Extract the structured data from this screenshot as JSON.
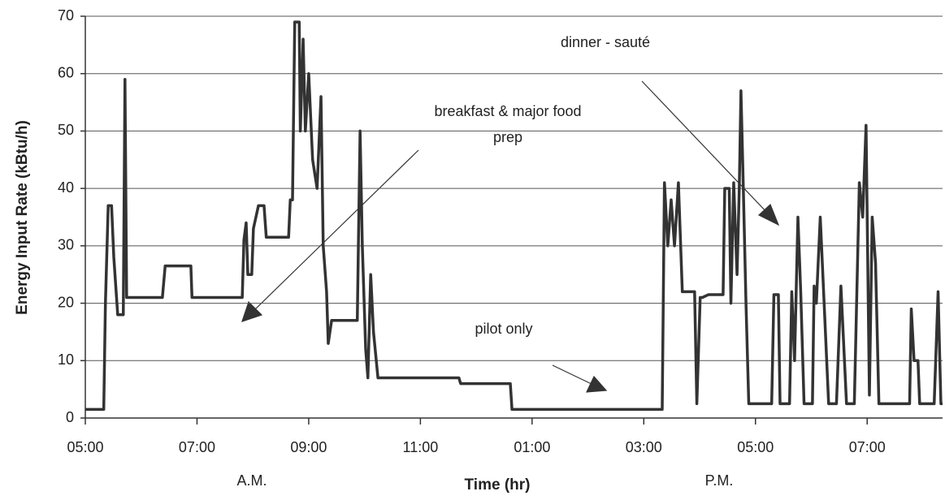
{
  "chart_data": {
    "type": "line",
    "ylabel": "Energy Input Rate (kBtu/h)",
    "xlabel": "Time (hr)",
    "period_labels": [
      "A.M.",
      "P.M."
    ],
    "annotations": [
      [
        "breakfast & major food",
        "prep"
      ],
      [
        "dinner - sauté"
      ],
      [
        "pilot only"
      ]
    ],
    "xlim": [
      5,
      20.35
    ],
    "xticks": [
      {
        "value": 5,
        "label": "05:00"
      },
      {
        "value": 7,
        "label": "07:00"
      },
      {
        "value": 9,
        "label": "09:00"
      },
      {
        "value": 11,
        "label": "11:00"
      },
      {
        "value": 13,
        "label": "01:00"
      },
      {
        "value": 15,
        "label": "03:00"
      },
      {
        "value": 17,
        "label": "05:00"
      },
      {
        "value": 19,
        "label": "07:00"
      }
    ],
    "ylim": [
      0,
      70
    ],
    "yticks": [
      0,
      10,
      20,
      30,
      40,
      50,
      60,
      70
    ],
    "grid": true,
    "x": [
      5.0,
      5.33,
      5.36,
      5.41,
      5.47,
      5.51,
      5.58,
      5.68,
      5.71,
      5.74,
      6.38,
      6.43,
      6.89,
      6.91,
      7.81,
      7.84,
      7.88,
      7.91,
      7.98,
      8.01,
      8.1,
      8.2,
      8.24,
      8.64,
      8.67,
      8.71,
      8.75,
      8.83,
      8.85,
      8.9,
      8.94,
      9.0,
      9.07,
      9.15,
      9.22,
      9.26,
      9.32,
      9.35,
      9.41,
      9.87,
      9.92,
      9.96,
      10.02,
      10.06,
      10.11,
      10.16,
      10.24,
      11.69,
      11.72,
      12.61,
      12.64,
      15.33,
      15.37,
      15.43,
      15.49,
      15.55,
      15.62,
      15.69,
      15.91,
      15.95,
      16.01,
      16.05,
      16.16,
      16.42,
      16.45,
      16.53,
      16.56,
      16.61,
      16.67,
      16.71,
      16.74,
      16.78,
      16.83,
      16.88,
      17.29,
      17.33,
      17.41,
      17.44,
      17.61,
      17.65,
      17.7,
      17.76,
      17.81,
      17.87,
      18.02,
      18.05,
      18.09,
      18.16,
      18.22,
      18.31,
      18.45,
      18.53,
      18.63,
      18.77,
      18.86,
      18.92,
      18.98,
      19.04,
      19.09,
      19.15,
      19.21,
      19.76,
      19.79,
      19.84,
      19.91,
      19.94,
      20.2,
      20.27,
      20.32,
      20.35
    ],
    "series": [
      {
        "color": "#333333",
        "values": [
          1.5,
          1.5,
          20,
          37,
          37,
          28,
          18,
          18,
          59,
          21,
          21,
          26.5,
          26.5,
          21,
          21,
          31,
          34,
          25,
          25,
          33,
          37,
          37,
          31.5,
          31.5,
          38,
          38,
          69,
          69,
          50,
          66,
          50,
          60,
          45,
          40,
          56,
          30,
          22,
          13,
          17,
          17,
          50,
          30,
          12,
          7,
          25,
          15,
          7,
          7,
          6,
          6,
          1.5,
          1.5,
          41,
          30,
          38,
          30,
          41,
          22,
          22,
          2.5,
          21,
          21,
          21.5,
          21.5,
          40,
          40,
          20,
          41,
          25,
          40,
          57,
          41,
          20,
          2.5,
          2.5,
          21.5,
          21.5,
          2.5,
          2.5,
          22,
          10,
          35,
          22,
          2.5,
          2.5,
          23,
          20,
          35,
          22,
          2.5,
          2.5,
          23,
          2.5,
          2.5,
          41,
          35,
          51,
          4,
          35,
          27,
          2.5,
          2.5,
          19,
          10,
          10,
          2.5,
          2.5,
          22,
          2.5,
          2.5
        ]
      }
    ]
  }
}
